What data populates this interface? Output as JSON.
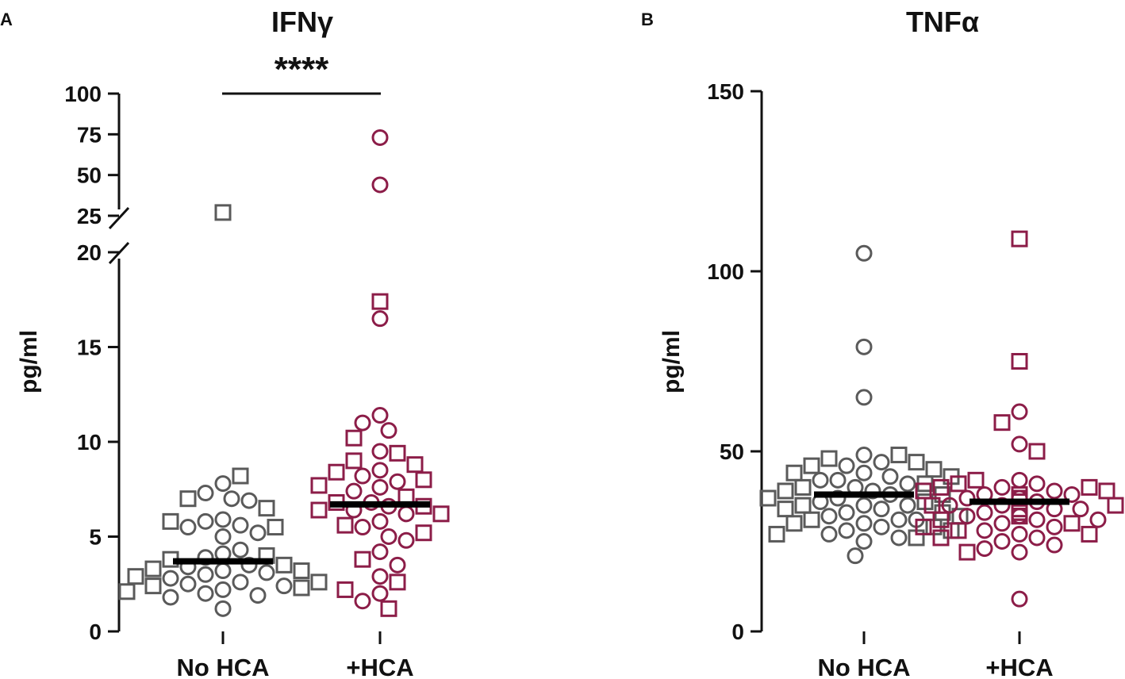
{
  "colors": {
    "no_hca": "#5a5a5a",
    "hca": "#8c1d48",
    "axis": "#111111",
    "median": "#000000"
  },
  "chart_data": [
    {
      "panel_label": "A",
      "type": "scatter",
      "title": "IFNγ",
      "ylabel": "pg/ml",
      "categories": [
        "No HCA",
        "+HCA"
      ],
      "ylim_lower": [
        0,
        20
      ],
      "ylim_upper": [
        25,
        100
      ],
      "yticks_lower": [
        "0",
        "5",
        "10",
        "15",
        "20"
      ],
      "yticks_upper": [
        "25",
        "50",
        "75",
        "100"
      ],
      "significance": "****",
      "medians": [
        3.7,
        6.7
      ],
      "series": [
        {
          "name": "No HCA",
          "circles": [
            7.8,
            7.3,
            7.0,
            6.9,
            5.9,
            5.8,
            5.6,
            5.5,
            5.2,
            5.0,
            4.3,
            4.1,
            3.9,
            3.5,
            3.4,
            3.2,
            3.1,
            3.0,
            2.8,
            2.6,
            2.5,
            2.4,
            2.2,
            2.0,
            1.9,
            1.8,
            1.2
          ],
          "squares": [
            27.0,
            8.2,
            7.0,
            6.5,
            5.8,
            5.5,
            4.0,
            3.8,
            3.5,
            3.3,
            3.2,
            2.9,
            2.6,
            2.4,
            2.3,
            2.1
          ]
        },
        {
          "name": "+HCA",
          "circles": [
            73.0,
            44.0,
            16.5,
            11.4,
            11.0,
            10.6,
            9.5,
            8.5,
            8.2,
            7.9,
            7.6,
            7.4,
            6.8,
            6.6,
            6.4,
            6.2,
            5.8,
            5.5,
            5.0,
            4.8,
            4.2,
            3.5,
            2.9,
            2.0,
            1.6
          ],
          "squares": [
            17.4,
            10.2,
            9.4,
            9.0,
            8.8,
            8.4,
            8.0,
            7.7,
            7.1,
            6.8,
            6.6,
            6.4,
            6.2,
            5.6,
            5.2,
            3.8,
            2.6,
            2.2,
            1.2
          ]
        }
      ]
    },
    {
      "panel_label": "B",
      "type": "scatter",
      "title": "TNFα",
      "ylabel": "pg/ml",
      "categories": [
        "No HCA",
        "+HCA"
      ],
      "ylim": [
        0,
        150
      ],
      "yticks": [
        "0",
        "50",
        "100",
        "150"
      ],
      "medians": [
        38,
        36
      ],
      "series": [
        {
          "name": "No HCA",
          "circles": [
            105,
            79,
            65,
            49,
            47,
            46,
            44,
            43,
            42,
            42,
            41,
            40,
            39,
            38,
            37,
            36,
            35,
            35,
            34,
            33,
            32,
            31,
            31,
            30,
            29,
            28,
            27,
            26,
            25,
            21
          ],
          "squares": [
            49,
            48,
            47,
            46,
            45,
            44,
            43,
            41,
            40,
            39,
            38,
            37,
            36,
            35,
            34,
            33,
            32,
            31,
            30,
            29,
            28,
            27,
            26
          ]
        },
        {
          "name": "+HCA",
          "circles": [
            61,
            52,
            42,
            41,
            40,
            39,
            38,
            38,
            37,
            37,
            36,
            35,
            35,
            34,
            34,
            33,
            32,
            32,
            31,
            31,
            30,
            29,
            28,
            27,
            26,
            25,
            24,
            23,
            22,
            9
          ],
          "squares": [
            109,
            75,
            58,
            50,
            42,
            41,
            40,
            40,
            39,
            39,
            38,
            37,
            37,
            36,
            35,
            35,
            34,
            33,
            33,
            32,
            31,
            30,
            29,
            28,
            27,
            26,
            22
          ]
        }
      ]
    }
  ]
}
